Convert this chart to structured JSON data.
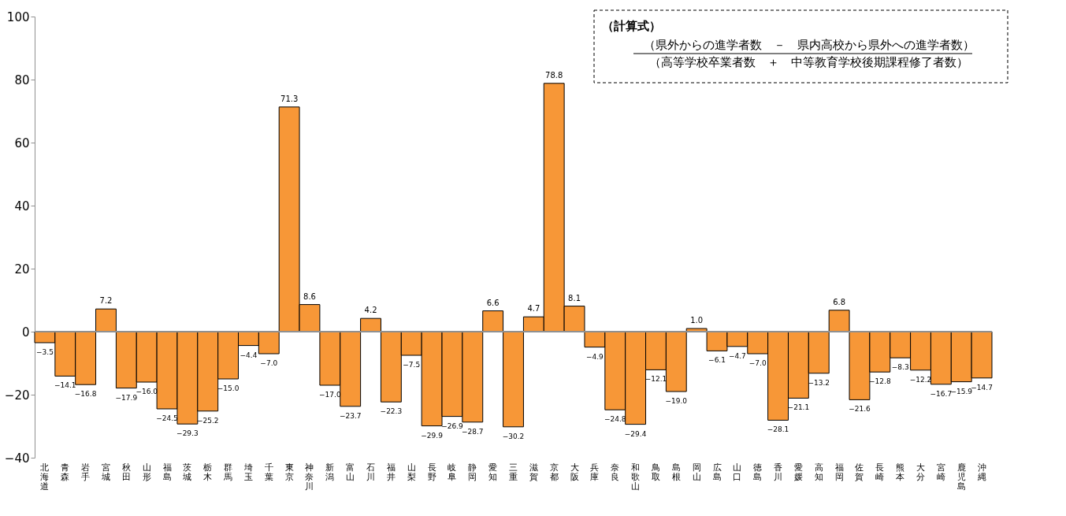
{
  "chart_data": {
    "type": "bar",
    "categories": [
      "北海道",
      "青森",
      "岩手",
      "宮城",
      "秋田",
      "山形",
      "福島",
      "茨城",
      "栃木",
      "群馬",
      "埼玉",
      "千葉",
      "東京",
      "神奈川",
      "新潟",
      "富山",
      "石川",
      "福井",
      "山梨",
      "長野",
      "岐阜",
      "静岡",
      "愛知",
      "三重",
      "滋賀",
      "京都",
      "大阪",
      "兵庫",
      "奈良",
      "和歌山",
      "鳥取",
      "島根",
      "岡山",
      "広島",
      "山口",
      "徳島",
      "香川",
      "愛媛",
      "高知",
      "福岡",
      "佐賀",
      "長崎",
      "熊本",
      "大分",
      "宮崎",
      "鹿児島",
      "沖縄"
    ],
    "values": [
      -3.5,
      -14.1,
      -16.8,
      7.2,
      -17.9,
      -16.0,
      -24.5,
      -29.3,
      -25.2,
      -15.0,
      -4.4,
      -7.0,
      71.3,
      8.6,
      -17.0,
      -23.7,
      4.2,
      -22.3,
      -7.5,
      -29.9,
      -26.9,
      -28.7,
      6.6,
      -30.2,
      4.7,
      78.8,
      8.1,
      -4.9,
      -24.8,
      -29.4,
      -12.1,
      -19.0,
      1.0,
      -6.1,
      -4.7,
      -7.0,
      -28.1,
      -21.1,
      -13.2,
      6.8,
      -21.6,
      -12.8,
      -8.3,
      -12.2,
      -16.7,
      -15.9,
      -14.7
    ],
    "color": "#f79737",
    "ylim": [
      -40,
      100
    ],
    "yticks": [
      -40,
      -20,
      0,
      20,
      40,
      60,
      80,
      100
    ],
    "grid": false,
    "value_labels": [
      "−3.5",
      "−14.1",
      "−16.8",
      "7.2",
      "−17.9",
      "−16.0",
      "−24.5",
      "−29.3",
      "−25.2",
      "−15.0",
      "−4.4",
      "−7.0",
      "71.3",
      "8.6",
      "−17.0",
      "−23.7",
      "4.2",
      "−22.3",
      "−7.5",
      "−29.9",
      "−26.9",
      "−28.7",
      "6.6",
      "−30.2",
      "4.7",
      "78.8",
      "8.1",
      "−4.9",
      "−24.8",
      "−29.4",
      "−12.1",
      "−19.0",
      "1.0",
      "−6.1",
      "−4.7",
      "−7.0",
      "−28.1",
      "−21.1",
      "−13.2",
      "6.8",
      "−21.6",
      "−12.8",
      "−8.3",
      "−12.2",
      "−16.7",
      "−15.9",
      "−14.7"
    ],
    "ref_lines": [
      {
        "axis": "y",
        "value": 0,
        "color": "#909090"
      }
    ],
    "annotations": [
      "（計算式）",
      "（県外からの進学者数　－　県内高校から県外への進学者数）",
      "（高等学校卒業者数　＋　中等教育学校後期課程修了者数）"
    ]
  }
}
